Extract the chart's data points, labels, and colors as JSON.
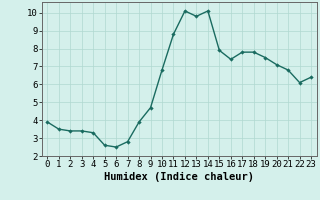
{
  "x": [
    0,
    1,
    2,
    3,
    4,
    5,
    6,
    7,
    8,
    9,
    10,
    11,
    12,
    13,
    14,
    15,
    16,
    17,
    18,
    19,
    20,
    21,
    22,
    23
  ],
  "y": [
    3.9,
    3.5,
    3.4,
    3.4,
    3.3,
    2.6,
    2.5,
    2.8,
    3.9,
    4.7,
    6.8,
    8.8,
    10.1,
    9.8,
    10.1,
    7.9,
    7.4,
    7.8,
    7.8,
    7.5,
    7.1,
    6.8,
    6.1,
    6.4
  ],
  "xlabel": "Humidex (Indice chaleur)",
  "xlim": [
    -0.5,
    23.5
  ],
  "ylim": [
    2,
    10.6
  ],
  "yticks": [
    2,
    3,
    4,
    5,
    6,
    7,
    8,
    9,
    10
  ],
  "xticks": [
    0,
    1,
    2,
    3,
    4,
    5,
    6,
    7,
    8,
    9,
    10,
    11,
    12,
    13,
    14,
    15,
    16,
    17,
    18,
    19,
    20,
    21,
    22,
    23
  ],
  "line_color": "#1a6b60",
  "marker_color": "#1a6b60",
  "bg_color": "#d4f0eb",
  "grid_color": "#b0d8d0",
  "xlabel_fontsize": 7.5,
  "tick_fontsize": 6.5,
  "marker_size": 2.2,
  "line_width": 1.0
}
